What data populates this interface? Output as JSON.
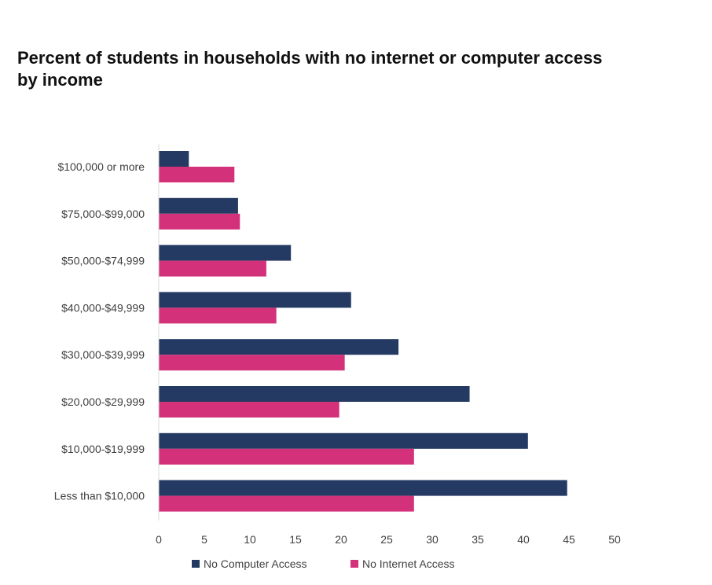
{
  "chart_data": {
    "type": "bar",
    "orientation": "horizontal",
    "title_lines": [
      "Percent of students in households with no internet or computer access",
      "by income"
    ],
    "categories": [
      "$100,000 or more",
      "$75,000-$99,000",
      "$50,000-$74,999",
      "$40,000-$49,999",
      "$30,000-$39,999",
      "$20,000-$29,999",
      "$10,000-$19,999",
      "Less than $10,000"
    ],
    "series": [
      {
        "name": "No Computer Access",
        "color": "#243a63",
        "values": [
          3.3,
          8.7,
          14.5,
          21.1,
          26.3,
          34.1,
          40.5,
          44.8
        ]
      },
      {
        "name": "No Internet Access",
        "color": "#d4317b",
        "values": [
          8.3,
          8.9,
          11.8,
          12.9,
          20.4,
          19.8,
          28.0,
          28.0
        ]
      }
    ],
    "xlim": [
      0,
      50
    ],
    "x_ticks": [
      0,
      5,
      10,
      15,
      20,
      25,
      30,
      35,
      40,
      45,
      50
    ],
    "grid": false,
    "legend_position": "bottom"
  }
}
